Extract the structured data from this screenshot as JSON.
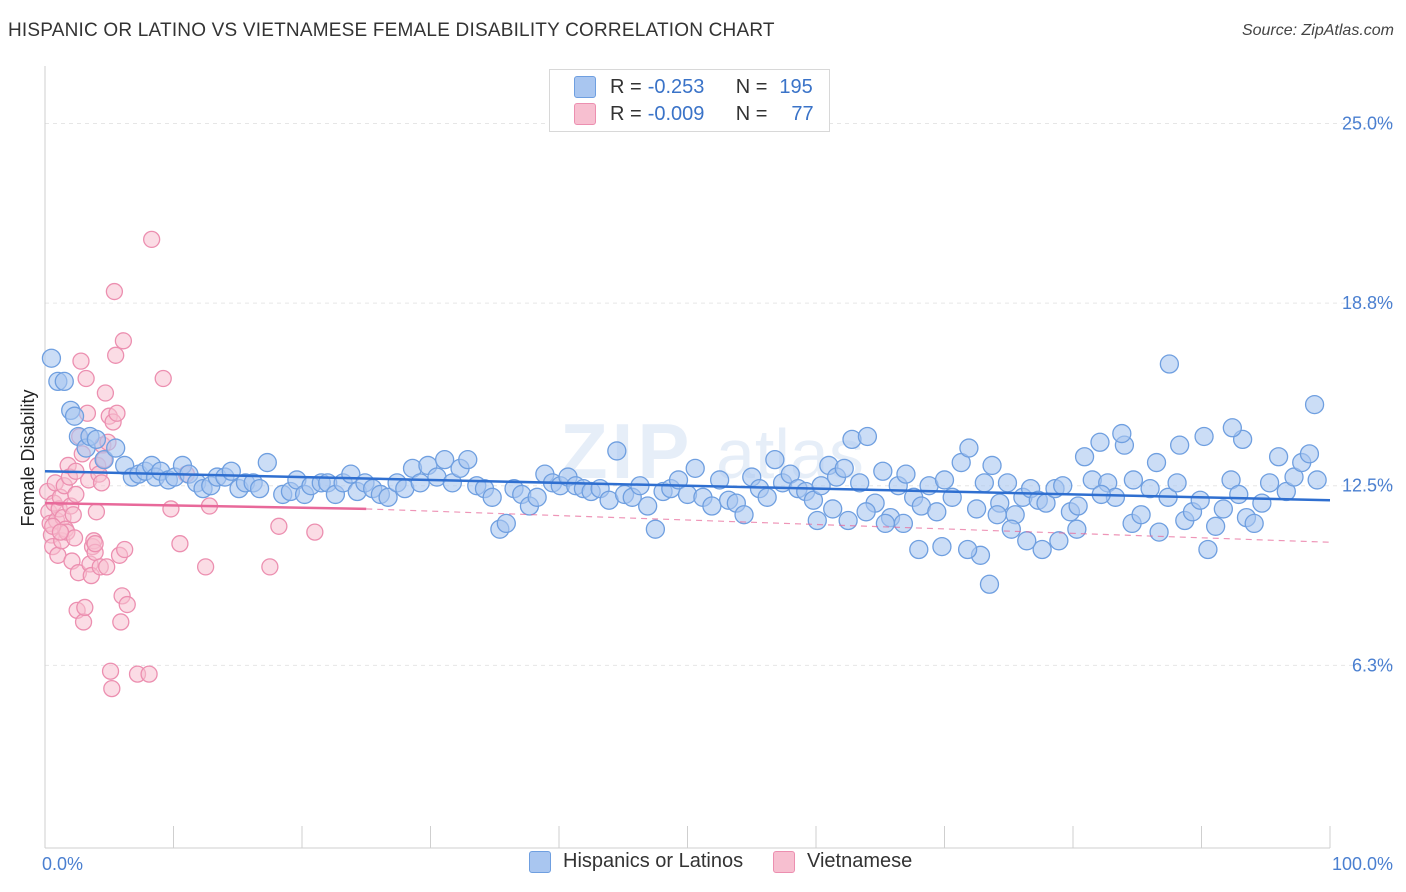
{
  "title": "HISPANIC OR LATINO VS VIETNAMESE FEMALE DISABILITY CORRELATION CHART",
  "source": "Source: ZipAtlas.com",
  "legend": {
    "rows": [
      {
        "r_label": "R =",
        "r_value": "-0.253",
        "n_label": "N =",
        "n_value": "195"
      },
      {
        "r_label": "R =",
        "r_value": "-0.009",
        "n_label": "N =",
        "n_value": "77"
      }
    ]
  },
  "bottom_legend": [
    "Hispanics or Latinos",
    "Vietnamese"
  ],
  "colors": {
    "blue_fill": "#a9c6f0",
    "blue_stroke": "#6f9fe0",
    "blue_line": "#2f6fd0",
    "pink_fill": "#f7bfd0",
    "pink_stroke": "#ec8fb0",
    "pink_line": "#e8699a",
    "tick_text": "#4a7fd0",
    "grid": "#e6e6e6"
  },
  "chart_data": {
    "type": "scatter",
    "title": "HISPANIC OR LATINO VS VIETNAMESE FEMALE DISABILITY CORRELATION CHART",
    "xlabel": "",
    "ylabel": "Female Disability",
    "xlim": [
      0,
      100
    ],
    "ylim": [
      0,
      26.5
    ],
    "x_tick_labels": [
      "0.0%",
      "100.0%"
    ],
    "y_ticks": [
      6.3,
      12.5,
      18.8,
      25.0
    ],
    "y_tick_labels": [
      "6.3%",
      "12.5%",
      "18.8%",
      "25.0%"
    ],
    "series": [
      {
        "name": "Hispanics or Latinos",
        "R": -0.253,
        "N": 195,
        "trend": {
          "x": [
            0,
            100
          ],
          "y": [
            13.0,
            12.0
          ]
        },
        "points": [
          [
            0.5,
            16.9
          ],
          [
            1.0,
            16.1
          ],
          [
            1.5,
            16.1
          ],
          [
            2.0,
            15.1
          ],
          [
            2.3,
            14.9
          ],
          [
            2.6,
            14.2
          ],
          [
            3.2,
            13.8
          ],
          [
            3.5,
            14.2
          ],
          [
            4.0,
            14.1
          ],
          [
            4.6,
            13.4
          ],
          [
            5.5,
            13.8
          ],
          [
            6.2,
            13.2
          ],
          [
            6.8,
            12.8
          ],
          [
            7.3,
            12.9
          ],
          [
            7.8,
            13.0
          ],
          [
            8.3,
            13.2
          ],
          [
            8.6,
            12.8
          ],
          [
            9.0,
            13.0
          ],
          [
            9.6,
            12.7
          ],
          [
            10.1,
            12.8
          ],
          [
            10.7,
            13.2
          ],
          [
            11.2,
            12.9
          ],
          [
            11.8,
            12.6
          ],
          [
            12.3,
            12.4
          ],
          [
            12.9,
            12.5
          ],
          [
            13.4,
            12.8
          ],
          [
            14.0,
            12.8
          ],
          [
            14.5,
            13.0
          ],
          [
            15.1,
            12.4
          ],
          [
            15.6,
            12.6
          ],
          [
            16.2,
            12.6
          ],
          [
            16.7,
            12.4
          ],
          [
            17.3,
            13.3
          ],
          [
            18.5,
            12.2
          ],
          [
            19.1,
            12.3
          ],
          [
            19.6,
            12.7
          ],
          [
            20.2,
            12.2
          ],
          [
            20.7,
            12.5
          ],
          [
            21.5,
            12.6
          ],
          [
            22.0,
            12.6
          ],
          [
            22.6,
            12.2
          ],
          [
            23.2,
            12.6
          ],
          [
            23.8,
            12.9
          ],
          [
            24.3,
            12.3
          ],
          [
            24.9,
            12.6
          ],
          [
            25.5,
            12.4
          ],
          [
            26.1,
            12.2
          ],
          [
            26.7,
            12.1
          ],
          [
            27.4,
            12.6
          ],
          [
            28.0,
            12.4
          ],
          [
            28.6,
            13.1
          ],
          [
            29.2,
            12.6
          ],
          [
            29.8,
            13.2
          ],
          [
            30.5,
            12.8
          ],
          [
            31.1,
            13.4
          ],
          [
            31.7,
            12.6
          ],
          [
            32.3,
            13.1
          ],
          [
            32.9,
            13.4
          ],
          [
            33.6,
            12.5
          ],
          [
            34.2,
            12.4
          ],
          [
            34.8,
            12.1
          ],
          [
            35.4,
            11.0
          ],
          [
            35.9,
            11.2
          ],
          [
            36.5,
            12.4
          ],
          [
            37.1,
            12.2
          ],
          [
            37.7,
            11.8
          ],
          [
            38.3,
            12.1
          ],
          [
            38.9,
            12.9
          ],
          [
            39.5,
            12.6
          ],
          [
            40.1,
            12.5
          ],
          [
            40.7,
            12.8
          ],
          [
            41.3,
            12.5
          ],
          [
            41.9,
            12.4
          ],
          [
            42.5,
            12.3
          ],
          [
            43.2,
            12.4
          ],
          [
            43.9,
            12.0
          ],
          [
            44.5,
            13.7
          ],
          [
            45.1,
            12.2
          ],
          [
            45.7,
            12.1
          ],
          [
            46.3,
            12.5
          ],
          [
            46.9,
            11.8
          ],
          [
            47.5,
            11.0
          ],
          [
            48.1,
            12.3
          ],
          [
            48.7,
            12.4
          ],
          [
            49.3,
            12.7
          ],
          [
            50.0,
            12.2
          ],
          [
            50.6,
            13.1
          ],
          [
            51.2,
            12.1
          ],
          [
            51.9,
            11.8
          ],
          [
            52.5,
            12.7
          ],
          [
            53.2,
            12.0
          ],
          [
            53.8,
            11.9
          ],
          [
            54.4,
            11.5
          ],
          [
            55.0,
            12.8
          ],
          [
            55.6,
            12.4
          ],
          [
            56.2,
            12.1
          ],
          [
            56.8,
            13.4
          ],
          [
            57.4,
            12.6
          ],
          [
            58.0,
            12.9
          ],
          [
            58.6,
            12.4
          ],
          [
            59.2,
            12.3
          ],
          [
            59.8,
            12.0
          ],
          [
            60.4,
            12.5
          ],
          [
            61.0,
            13.2
          ],
          [
            61.6,
            12.8
          ],
          [
            62.2,
            13.1
          ],
          [
            62.8,
            14.1
          ],
          [
            63.4,
            12.6
          ],
          [
            64.0,
            14.2
          ],
          [
            64.6,
            11.9
          ],
          [
            65.2,
            13.0
          ],
          [
            65.8,
            11.4
          ],
          [
            66.4,
            12.5
          ],
          [
            67.0,
            12.9
          ],
          [
            67.6,
            12.1
          ],
          [
            68.2,
            11.8
          ],
          [
            68.8,
            12.5
          ],
          [
            69.4,
            11.6
          ],
          [
            70.0,
            12.7
          ],
          [
            70.6,
            12.1
          ],
          [
            71.3,
            13.3
          ],
          [
            71.9,
            13.8
          ],
          [
            72.5,
            11.7
          ],
          [
            73.1,
            12.6
          ],
          [
            73.7,
            13.2
          ],
          [
            74.3,
            11.9
          ],
          [
            74.9,
            12.6
          ],
          [
            75.5,
            11.5
          ],
          [
            76.1,
            12.1
          ],
          [
            76.7,
            12.4
          ],
          [
            77.3,
            12.0
          ],
          [
            77.9,
            11.9
          ],
          [
            78.6,
            12.4
          ],
          [
            79.2,
            12.5
          ],
          [
            79.8,
            11.6
          ],
          [
            80.4,
            11.8
          ],
          [
            80.9,
            13.5
          ],
          [
            81.5,
            12.7
          ],
          [
            82.1,
            14.0
          ],
          [
            82.7,
            12.6
          ],
          [
            83.3,
            12.1
          ],
          [
            84.0,
            13.9
          ],
          [
            84.6,
            11.2
          ],
          [
            85.3,
            11.5
          ],
          [
            86.0,
            12.4
          ],
          [
            86.7,
            10.9
          ],
          [
            87.4,
            12.1
          ],
          [
            88.1,
            12.6
          ],
          [
            88.7,
            11.3
          ],
          [
            89.3,
            11.6
          ],
          [
            89.9,
            12.0
          ],
          [
            90.5,
            10.3
          ],
          [
            91.1,
            11.1
          ],
          [
            91.7,
            11.7
          ],
          [
            92.3,
            12.7
          ],
          [
            92.9,
            12.2
          ],
          [
            93.5,
            11.4
          ],
          [
            94.1,
            11.2
          ],
          [
            94.7,
            11.9
          ],
          [
            95.3,
            12.6
          ],
          [
            96.0,
            13.5
          ],
          [
            96.6,
            12.3
          ],
          [
            97.2,
            12.8
          ],
          [
            97.8,
            13.3
          ],
          [
            98.4,
            13.6
          ],
          [
            99.0,
            12.7
          ],
          [
            87.5,
            16.7
          ],
          [
            98.8,
            15.3
          ],
          [
            93.2,
            14.1
          ],
          [
            92.4,
            14.5
          ],
          [
            88.3,
            13.9
          ],
          [
            90.2,
            14.2
          ],
          [
            86.5,
            13.3
          ],
          [
            84.7,
            12.7
          ],
          [
            83.8,
            14.3
          ],
          [
            82.2,
            12.2
          ],
          [
            80.3,
            11.0
          ],
          [
            78.9,
            10.6
          ],
          [
            77.6,
            10.3
          ],
          [
            76.4,
            10.6
          ],
          [
            75.2,
            11.0
          ],
          [
            74.1,
            11.5
          ],
          [
            72.8,
            10.1
          ],
          [
            71.8,
            10.3
          ],
          [
            73.5,
            9.1
          ],
          [
            69.8,
            10.4
          ],
          [
            68.0,
            10.3
          ],
          [
            66.8,
            11.2
          ],
          [
            65.4,
            11.2
          ],
          [
            63.9,
            11.6
          ],
          [
            62.5,
            11.3
          ],
          [
            61.3,
            11.7
          ],
          [
            60.1,
            11.3
          ]
        ]
      },
      {
        "name": "Vietnamese",
        "R": -0.009,
        "N": 77,
        "trend": {
          "x": [
            0,
            25
          ],
          "y": [
            11.9,
            11.7
          ]
        },
        "points": [
          [
            0.2,
            12.3
          ],
          [
            0.3,
            11.6
          ],
          [
            0.4,
            11.2
          ],
          [
            0.5,
            10.8
          ],
          [
            0.6,
            10.4
          ],
          [
            0.7,
            11.9
          ],
          [
            0.8,
            12.6
          ],
          [
            0.9,
            11.3
          ],
          [
            1.0,
            10.1
          ],
          [
            1.1,
            11.7
          ],
          [
            1.2,
            12.1
          ],
          [
            1.3,
            10.6
          ],
          [
            1.4,
            11.4
          ],
          [
            1.5,
            12.5
          ],
          [
            1.6,
            11.0
          ],
          [
            1.7,
            10.9
          ],
          [
            1.8,
            13.2
          ],
          [
            1.9,
            12.8
          ],
          [
            2.0,
            11.8
          ],
          [
            2.1,
            9.9
          ],
          [
            2.2,
            11.5
          ],
          [
            2.3,
            10.7
          ],
          [
            2.4,
            12.2
          ],
          [
            2.5,
            8.2
          ],
          [
            2.6,
            9.5
          ],
          [
            2.7,
            14.2
          ],
          [
            2.8,
            16.8
          ],
          [
            2.9,
            13.6
          ],
          [
            3.0,
            7.8
          ],
          [
            3.1,
            8.3
          ],
          [
            3.2,
            16.2
          ],
          [
            3.3,
            15.0
          ],
          [
            3.4,
            12.7
          ],
          [
            3.5,
            9.8
          ],
          [
            3.6,
            9.4
          ],
          [
            3.7,
            10.4
          ],
          [
            3.8,
            10.6
          ],
          [
            3.9,
            10.2
          ],
          [
            4.0,
            11.6
          ],
          [
            4.1,
            13.2
          ],
          [
            4.2,
            12.9
          ],
          [
            4.3,
            9.7
          ],
          [
            4.4,
            12.6
          ],
          [
            4.5,
            13.9
          ],
          [
            4.6,
            13.4
          ],
          [
            4.7,
            15.7
          ],
          [
            4.8,
            9.7
          ],
          [
            4.9,
            14.0
          ],
          [
            5.0,
            14.9
          ],
          [
            5.1,
            6.1
          ],
          [
            5.2,
            5.5
          ],
          [
            5.3,
            14.7
          ],
          [
            5.4,
            19.2
          ],
          [
            5.5,
            17.0
          ],
          [
            5.6,
            15.0
          ],
          [
            5.8,
            10.1
          ],
          [
            5.9,
            7.8
          ],
          [
            6.0,
            8.7
          ],
          [
            6.1,
            17.5
          ],
          [
            6.2,
            10.3
          ],
          [
            6.4,
            8.4
          ],
          [
            7.2,
            6.0
          ],
          [
            8.1,
            6.0
          ],
          [
            8.3,
            21.0
          ],
          [
            9.2,
            16.2
          ],
          [
            9.8,
            11.7
          ],
          [
            10.5,
            10.5
          ],
          [
            11.0,
            12.9
          ],
          [
            12.5,
            9.7
          ],
          [
            12.8,
            11.8
          ],
          [
            17.5,
            9.7
          ],
          [
            18.2,
            11.1
          ],
          [
            21.0,
            10.9
          ],
          [
            0.6,
            11.1
          ],
          [
            1.2,
            10.9
          ],
          [
            2.4,
            13.0
          ],
          [
            3.9,
            10.5
          ]
        ]
      }
    ]
  }
}
